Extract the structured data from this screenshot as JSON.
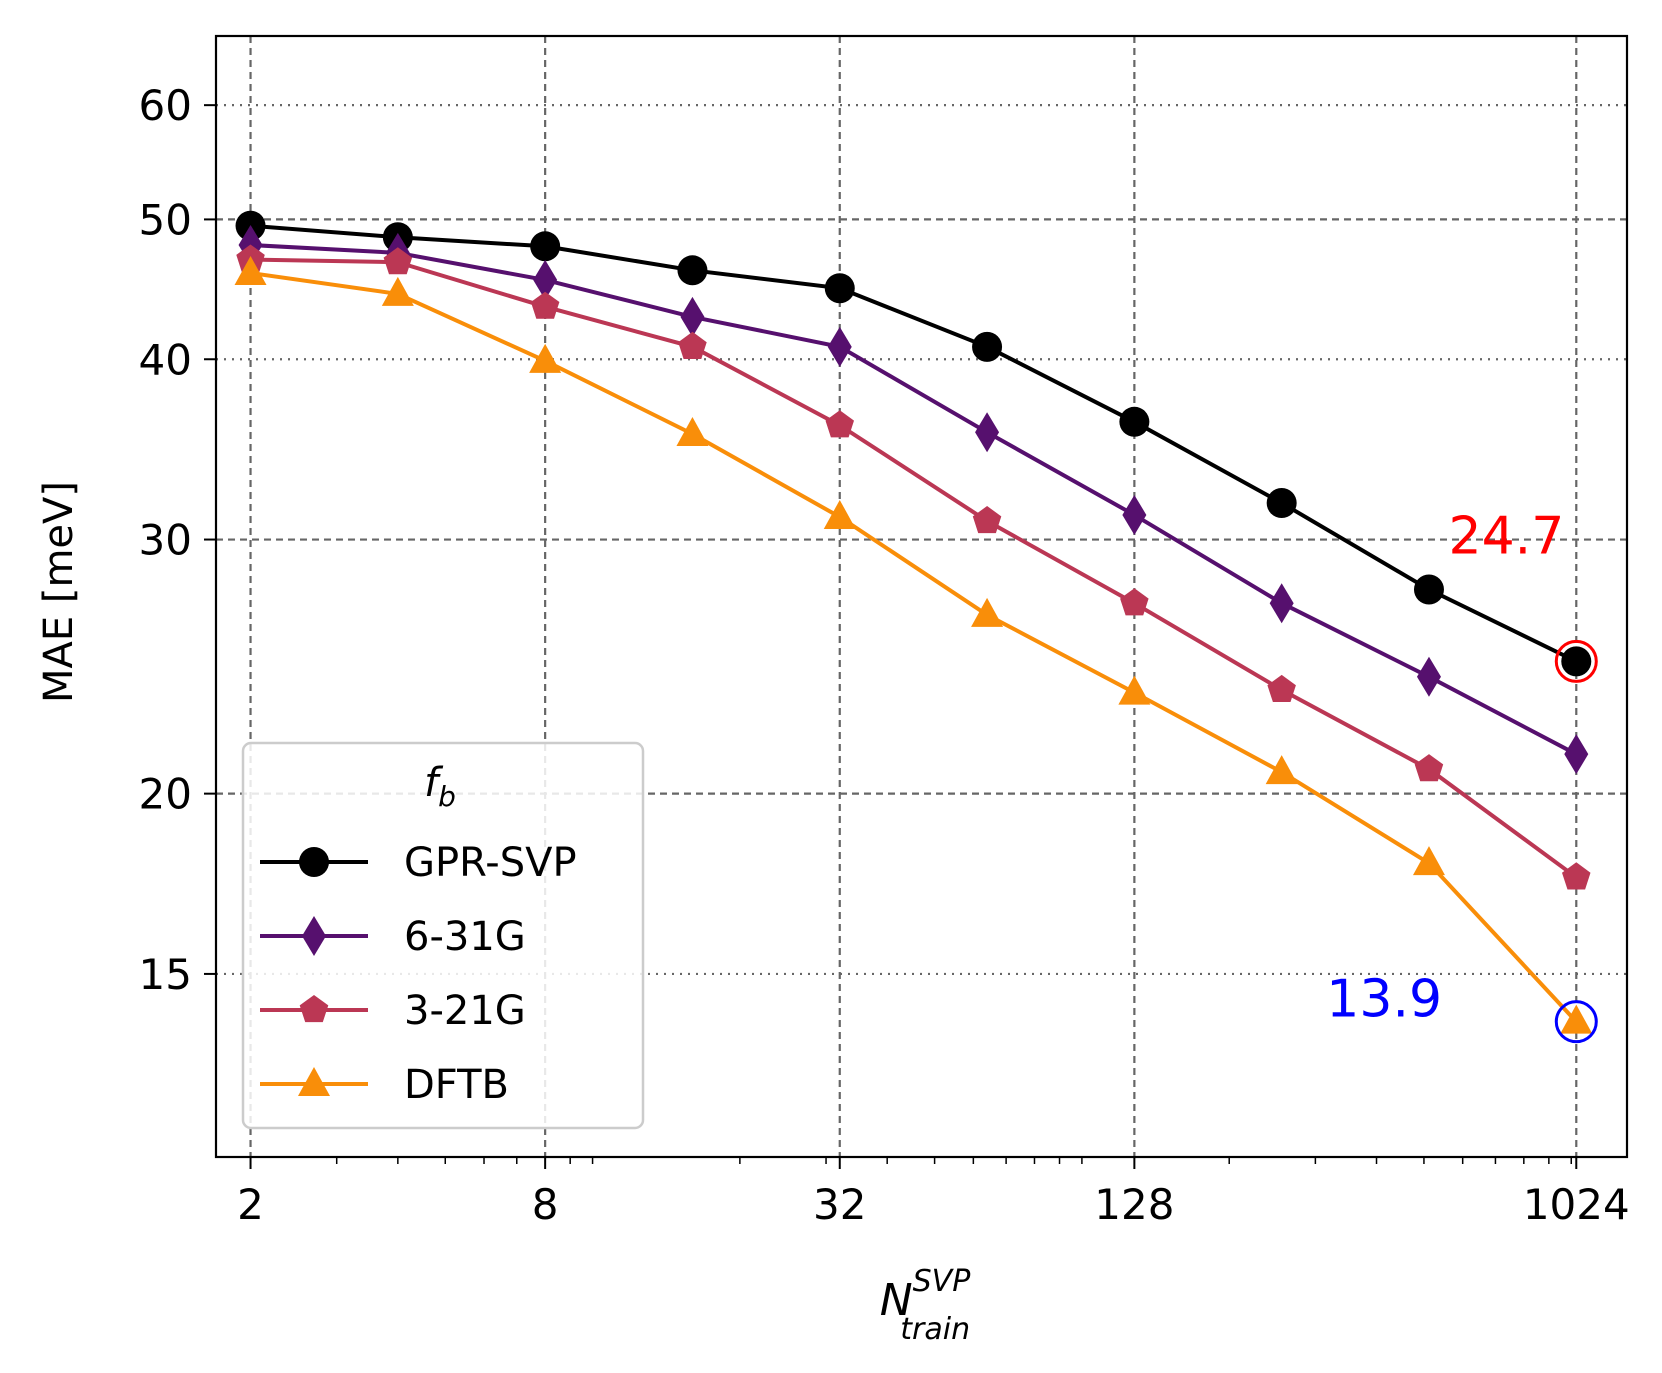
{
  "chart_data": {
    "type": "line",
    "title": "",
    "xlabel_main": "N",
    "xlabel_sup": "SVP",
    "xlabel_sub": "train",
    "ylabel": "MAE [meV]",
    "xscale": "log2",
    "yscale": "log",
    "xlim": [
      1.7,
      1300
    ],
    "ylim": [
      11.2,
      67
    ],
    "x": [
      2,
      4,
      8,
      16,
      32,
      64,
      128,
      256,
      512,
      1024
    ],
    "x_ticks": [
      2,
      8,
      32,
      128,
      1024
    ],
    "x_tick_labels": [
      "2",
      "8",
      "32",
      "128",
      "1024"
    ],
    "y_ticks": [
      15,
      20,
      30,
      40,
      50,
      60
    ],
    "y_tick_labels": [
      "15",
      "20",
      "30",
      "40",
      "50",
      "60"
    ],
    "y_dashed_grid": [
      20,
      30,
      50
    ],
    "y_dotted_grid": [
      15,
      40,
      60
    ],
    "series": [
      {
        "name": "GPR-SVP",
        "color": "#000000",
        "marker": "circle",
        "values": [
          49.5,
          48.6,
          47.9,
          46.1,
          44.8,
          40.8,
          36.2,
          31.8,
          27.7,
          24.7
        ]
      },
      {
        "name": "6-31G",
        "color": "#56106e",
        "marker": "diamond",
        "values": [
          48.0,
          47.4,
          45.4,
          42.8,
          40.8,
          35.6,
          31.2,
          27.1,
          24.1,
          21.3
        ]
      },
      {
        "name": "3-21G",
        "color": "#bb3754",
        "marker": "pentagon",
        "values": [
          46.9,
          46.7,
          43.5,
          40.8,
          36.0,
          30.9,
          27.1,
          23.6,
          20.8,
          17.5
        ]
      },
      {
        "name": "DFTB",
        "color": "#f98e09",
        "marker": "triangle",
        "values": [
          45.9,
          44.4,
          39.9,
          35.5,
          31.1,
          26.6,
          23.5,
          20.7,
          17.9,
          13.9
        ]
      }
    ],
    "legend": {
      "title": "f",
      "title_sub": "b",
      "placement": "lower-left"
    },
    "annotations": [
      {
        "text": "24.7",
        "x": 1024,
        "y": 24.7,
        "color": "#ff0000",
        "label_pos": "above-left"
      },
      {
        "text": "13.9",
        "x": 1024,
        "y": 13.9,
        "color": "#0000ff",
        "label_pos": "left"
      }
    ]
  }
}
